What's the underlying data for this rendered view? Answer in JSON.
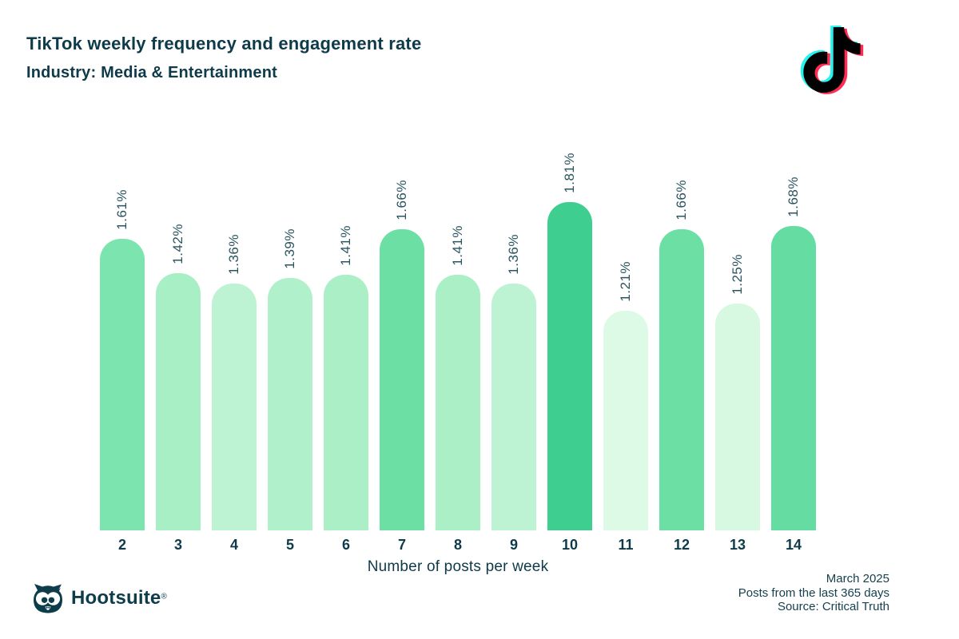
{
  "header": {
    "title": "TikTok weekly frequency and engagement rate",
    "subtitle": "Industry: Media & Entertainment"
  },
  "icons": {
    "tiktok": "tiktok-note-icon",
    "hootsuite": "owl-icon"
  },
  "chart_data": {
    "type": "bar",
    "categories": [
      "2",
      "3",
      "4",
      "5",
      "6",
      "7",
      "8",
      "9",
      "10",
      "11",
      "12",
      "13",
      "14"
    ],
    "values": [
      1.61,
      1.42,
      1.36,
      1.39,
      1.41,
      1.66,
      1.41,
      1.36,
      1.81,
      1.21,
      1.66,
      1.25,
      1.68
    ],
    "value_labels": [
      "1.61%",
      "1.42%",
      "1.36%",
      "1.39%",
      "1.41%",
      "1.66%",
      "1.41%",
      "1.36%",
      "1.81%",
      "1.21%",
      "1.66%",
      "1.25%",
      "1.68%"
    ],
    "bar_colors": [
      "#7ce4ae",
      "#a9efc5",
      "#bdf3d3",
      "#b0f0ca",
      "#abefc7",
      "#6cdfa4",
      "#abefc7",
      "#bdf3d3",
      "#3ecf90",
      "#ddfae6",
      "#6cdfa4",
      "#d7f8e1",
      "#65dca1"
    ],
    "title": "TikTok weekly frequency and engagement rate",
    "subtitle": "Industry: Media & Entertainment",
    "xlabel": "Number of posts per week",
    "ylabel": "",
    "ylim": [
      0,
      1.81
    ],
    "grid": false,
    "legend": false,
    "value_label_rotation": -90
  },
  "footer": {
    "brand": "Hootsuite",
    "brand_reg": "®",
    "date": "March 2025",
    "range": "Posts from the last 365 days",
    "source": "Source: Critical Truth"
  },
  "colors": {
    "heading_text": "#0e3a49",
    "value_label_text": "#2a545f",
    "footer_text": "#16414f",
    "brand_dark_teal": "#0d3c4a",
    "tiktok_cyan": "#25f4ee",
    "tiktok_red": "#fe2c55",
    "tiktok_black": "#010101"
  }
}
